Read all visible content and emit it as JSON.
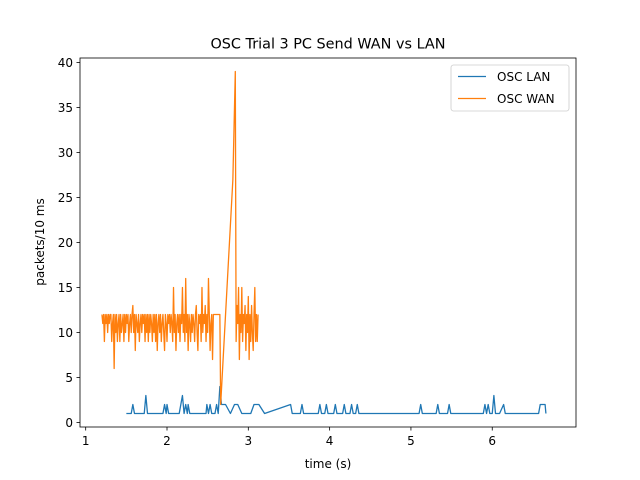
{
  "chart_data": {
    "type": "line",
    "title": "OSC Trial 3 PC Send WAN vs LAN",
    "xlabel": "time (s)",
    "ylabel": "packets/10 ms",
    "xlim": [
      0.93,
      7.03
    ],
    "ylim": [
      -0.5,
      40.5
    ],
    "xticks": [
      1,
      2,
      3,
      4,
      5,
      6
    ],
    "yticks": [
      0,
      5,
      10,
      15,
      20,
      25,
      30,
      35,
      40
    ],
    "grid": false,
    "legend_position": "top-right",
    "series": [
      {
        "name": "OSC LAN",
        "color": "#1f77b4",
        "points": [
          [
            1.5,
            1
          ],
          [
            1.56,
            1
          ],
          [
            1.58,
            2
          ],
          [
            1.6,
            1
          ],
          [
            1.72,
            1
          ],
          [
            1.74,
            3
          ],
          [
            1.76,
            1
          ],
          [
            1.95,
            1
          ],
          [
            1.97,
            2
          ],
          [
            1.99,
            1
          ],
          [
            2.0,
            2
          ],
          [
            2.02,
            1
          ],
          [
            2.15,
            1
          ],
          [
            2.19,
            3
          ],
          [
            2.21,
            1
          ],
          [
            2.23,
            2
          ],
          [
            2.25,
            1
          ],
          [
            2.26,
            2
          ],
          [
            2.28,
            1
          ],
          [
            2.48,
            1
          ],
          [
            2.49,
            2
          ],
          [
            2.51,
            1
          ],
          [
            2.53,
            2
          ],
          [
            2.55,
            1
          ],
          [
            2.59,
            1
          ],
          [
            2.61,
            2
          ],
          [
            2.63,
            1
          ],
          [
            2.65,
            4
          ],
          [
            2.67,
            2
          ],
          [
            2.72,
            2
          ],
          [
            2.78,
            1
          ],
          [
            2.83,
            2
          ],
          [
            2.87,
            2
          ],
          [
            2.92,
            1
          ],
          [
            3.03,
            1
          ],
          [
            3.07,
            2
          ],
          [
            3.13,
            2
          ],
          [
            3.2,
            1
          ],
          [
            3.52,
            2
          ],
          [
            3.54,
            1
          ],
          [
            3.64,
            1
          ],
          [
            3.66,
            2
          ],
          [
            3.68,
            1
          ],
          [
            3.86,
            1
          ],
          [
            3.88,
            2
          ],
          [
            3.9,
            1
          ],
          [
            3.94,
            1
          ],
          [
            3.96,
            2
          ],
          [
            3.98,
            1
          ],
          [
            4.05,
            1
          ],
          [
            4.07,
            2
          ],
          [
            4.09,
            1
          ],
          [
            4.16,
            1
          ],
          [
            4.18,
            2
          ],
          [
            4.2,
            1
          ],
          [
            4.25,
            1
          ],
          [
            4.27,
            2
          ],
          [
            4.29,
            1
          ],
          [
            4.32,
            1
          ],
          [
            4.34,
            2
          ],
          [
            4.36,
            1
          ],
          [
            5.1,
            1
          ],
          [
            5.12,
            2
          ],
          [
            5.14,
            1
          ],
          [
            5.31,
            1
          ],
          [
            5.33,
            2
          ],
          [
            5.35,
            1
          ],
          [
            5.45,
            1
          ],
          [
            5.47,
            2
          ],
          [
            5.49,
            1
          ],
          [
            5.89,
            1
          ],
          [
            5.91,
            2
          ],
          [
            5.93,
            1
          ],
          [
            5.95,
            2
          ],
          [
            5.97,
            1
          ],
          [
            6.0,
            1
          ],
          [
            6.02,
            3
          ],
          [
            6.04,
            1
          ],
          [
            6.07,
            1
          ],
          [
            6.09,
            1
          ],
          [
            6.14,
            2
          ],
          [
            6.16,
            1
          ],
          [
            6.57,
            1
          ],
          [
            6.59,
            2
          ],
          [
            6.65,
            2
          ],
          [
            6.66,
            1
          ]
        ]
      },
      {
        "name": "OSC WAN",
        "color": "#ff7f0e",
        "points": [
          [
            1.2,
            12
          ],
          [
            1.21,
            11
          ],
          [
            1.22,
            12
          ],
          [
            1.23,
            9
          ],
          [
            1.24,
            12
          ],
          [
            1.25,
            11
          ],
          [
            1.26,
            12
          ],
          [
            1.27,
            10
          ],
          [
            1.28,
            12
          ],
          [
            1.29,
            11
          ],
          [
            1.3,
            12
          ],
          [
            1.31,
            12
          ],
          [
            1.32,
            9
          ],
          [
            1.33,
            11
          ],
          [
            1.34,
            12
          ],
          [
            1.35,
            6
          ],
          [
            1.36,
            12
          ],
          [
            1.37,
            10
          ],
          [
            1.38,
            12
          ],
          [
            1.39,
            9
          ],
          [
            1.4,
            11
          ],
          [
            1.41,
            12
          ],
          [
            1.42,
            9
          ],
          [
            1.43,
            12
          ],
          [
            1.44,
            10
          ],
          [
            1.45,
            11
          ],
          [
            1.46,
            12
          ],
          [
            1.47,
            9
          ],
          [
            1.48,
            12
          ],
          [
            1.49,
            10
          ],
          [
            1.5,
            12
          ],
          [
            1.51,
            11
          ],
          [
            1.52,
            12
          ],
          [
            1.53,
            9
          ],
          [
            1.54,
            11
          ],
          [
            1.55,
            12
          ],
          [
            1.56,
            10
          ],
          [
            1.57,
            12
          ],
          [
            1.58,
            13
          ],
          [
            1.59,
            10
          ],
          [
            1.6,
            12
          ],
          [
            1.61,
            8
          ],
          [
            1.62,
            12
          ],
          [
            1.63,
            11
          ],
          [
            1.64,
            10
          ],
          [
            1.65,
            12
          ],
          [
            1.66,
            9
          ],
          [
            1.67,
            11
          ],
          [
            1.68,
            12
          ],
          [
            1.69,
            10
          ],
          [
            1.7,
            12
          ],
          [
            1.71,
            11
          ],
          [
            1.72,
            12
          ],
          [
            1.73,
            9
          ],
          [
            1.74,
            12
          ],
          [
            1.75,
            10
          ],
          [
            1.76,
            12
          ],
          [
            1.77,
            9
          ],
          [
            1.78,
            12
          ],
          [
            1.79,
            10
          ],
          [
            1.8,
            12
          ],
          [
            1.81,
            11
          ],
          [
            1.82,
            9
          ],
          [
            1.83,
            12
          ],
          [
            1.84,
            10
          ],
          [
            1.85,
            12
          ],
          [
            1.86,
            9
          ],
          [
            1.87,
            12
          ],
          [
            1.88,
            8
          ],
          [
            1.89,
            11
          ],
          [
            1.9,
            12
          ],
          [
            1.91,
            10
          ],
          [
            1.92,
            12
          ],
          [
            1.93,
            9
          ],
          [
            1.94,
            11
          ],
          [
            1.95,
            12
          ],
          [
            1.96,
            10
          ],
          [
            1.97,
            8
          ],
          [
            1.98,
            12
          ],
          [
            1.99,
            11
          ],
          [
            2.0,
            9
          ],
          [
            2.01,
            12
          ],
          [
            2.02,
            11
          ],
          [
            2.03,
            12
          ],
          [
            2.04,
            10
          ],
          [
            2.05,
            12
          ],
          [
            2.06,
            11
          ],
          [
            2.07,
            9
          ],
          [
            2.08,
            15
          ],
          [
            2.09,
            10
          ],
          [
            2.1,
            12
          ],
          [
            2.11,
            8
          ],
          [
            2.12,
            11
          ],
          [
            2.13,
            12
          ],
          [
            2.14,
            10
          ],
          [
            2.15,
            12
          ],
          [
            2.16,
            9
          ],
          [
            2.17,
            12
          ],
          [
            2.18,
            11
          ],
          [
            2.19,
            15
          ],
          [
            2.2,
            10
          ],
          [
            2.21,
            12
          ],
          [
            2.22,
            9
          ],
          [
            2.23,
            16
          ],
          [
            2.24,
            10
          ],
          [
            2.25,
            12
          ],
          [
            2.26,
            8
          ],
          [
            2.27,
            12
          ],
          [
            2.28,
            11
          ],
          [
            2.29,
            9
          ],
          [
            2.3,
            12
          ],
          [
            2.31,
            10
          ],
          [
            2.32,
            12
          ],
          [
            2.33,
            11
          ],
          [
            2.34,
            9
          ],
          [
            2.35,
            12
          ],
          [
            2.36,
            13
          ],
          [
            2.37,
            10
          ],
          [
            2.38,
            8
          ],
          [
            2.39,
            12
          ],
          [
            2.4,
            11
          ],
          [
            2.41,
            12
          ],
          [
            2.42,
            9
          ],
          [
            2.43,
            15
          ],
          [
            2.44,
            10
          ],
          [
            2.45,
            12
          ],
          [
            2.46,
            11
          ],
          [
            2.47,
            13
          ],
          [
            2.48,
            9
          ],
          [
            2.49,
            12
          ],
          [
            2.5,
            10
          ],
          [
            2.51,
            16
          ],
          [
            2.52,
            12
          ],
          [
            2.53,
            8
          ],
          [
            2.54,
            11
          ],
          [
            2.55,
            12
          ],
          [
            2.56,
            7
          ],
          [
            2.57,
            12
          ],
          [
            2.58,
            12
          ],
          [
            2.59,
            12
          ],
          [
            2.6,
            12
          ],
          [
            2.61,
            12
          ],
          [
            2.62,
            12
          ],
          [
            2.63,
            12
          ],
          [
            2.64,
            12
          ],
          [
            2.65,
            12
          ],
          [
            2.66,
            2
          ],
          [
            2.81,
            27
          ],
          [
            2.84,
            39
          ],
          [
            2.85,
            9
          ],
          [
            2.86,
            13
          ],
          [
            2.87,
            11
          ],
          [
            2.88,
            15
          ],
          [
            2.89,
            7
          ],
          [
            2.9,
            12
          ],
          [
            2.91,
            10
          ],
          [
            2.92,
            15
          ],
          [
            2.93,
            9
          ],
          [
            2.94,
            12
          ],
          [
            2.95,
            11
          ],
          [
            2.96,
            13
          ],
          [
            2.97,
            8
          ],
          [
            2.98,
            12
          ],
          [
            2.99,
            10
          ],
          [
            3.0,
            14
          ],
          [
            3.01,
            7
          ],
          [
            3.02,
            12
          ],
          [
            3.03,
            9
          ],
          [
            3.04,
            13
          ],
          [
            3.05,
            10
          ],
          [
            3.06,
            8
          ],
          [
            3.07,
            12
          ],
          [
            3.08,
            15
          ],
          [
            3.09,
            9
          ],
          [
            3.1,
            12
          ],
          [
            3.11,
            9
          ],
          [
            3.12,
            12
          ]
        ]
      }
    ]
  }
}
